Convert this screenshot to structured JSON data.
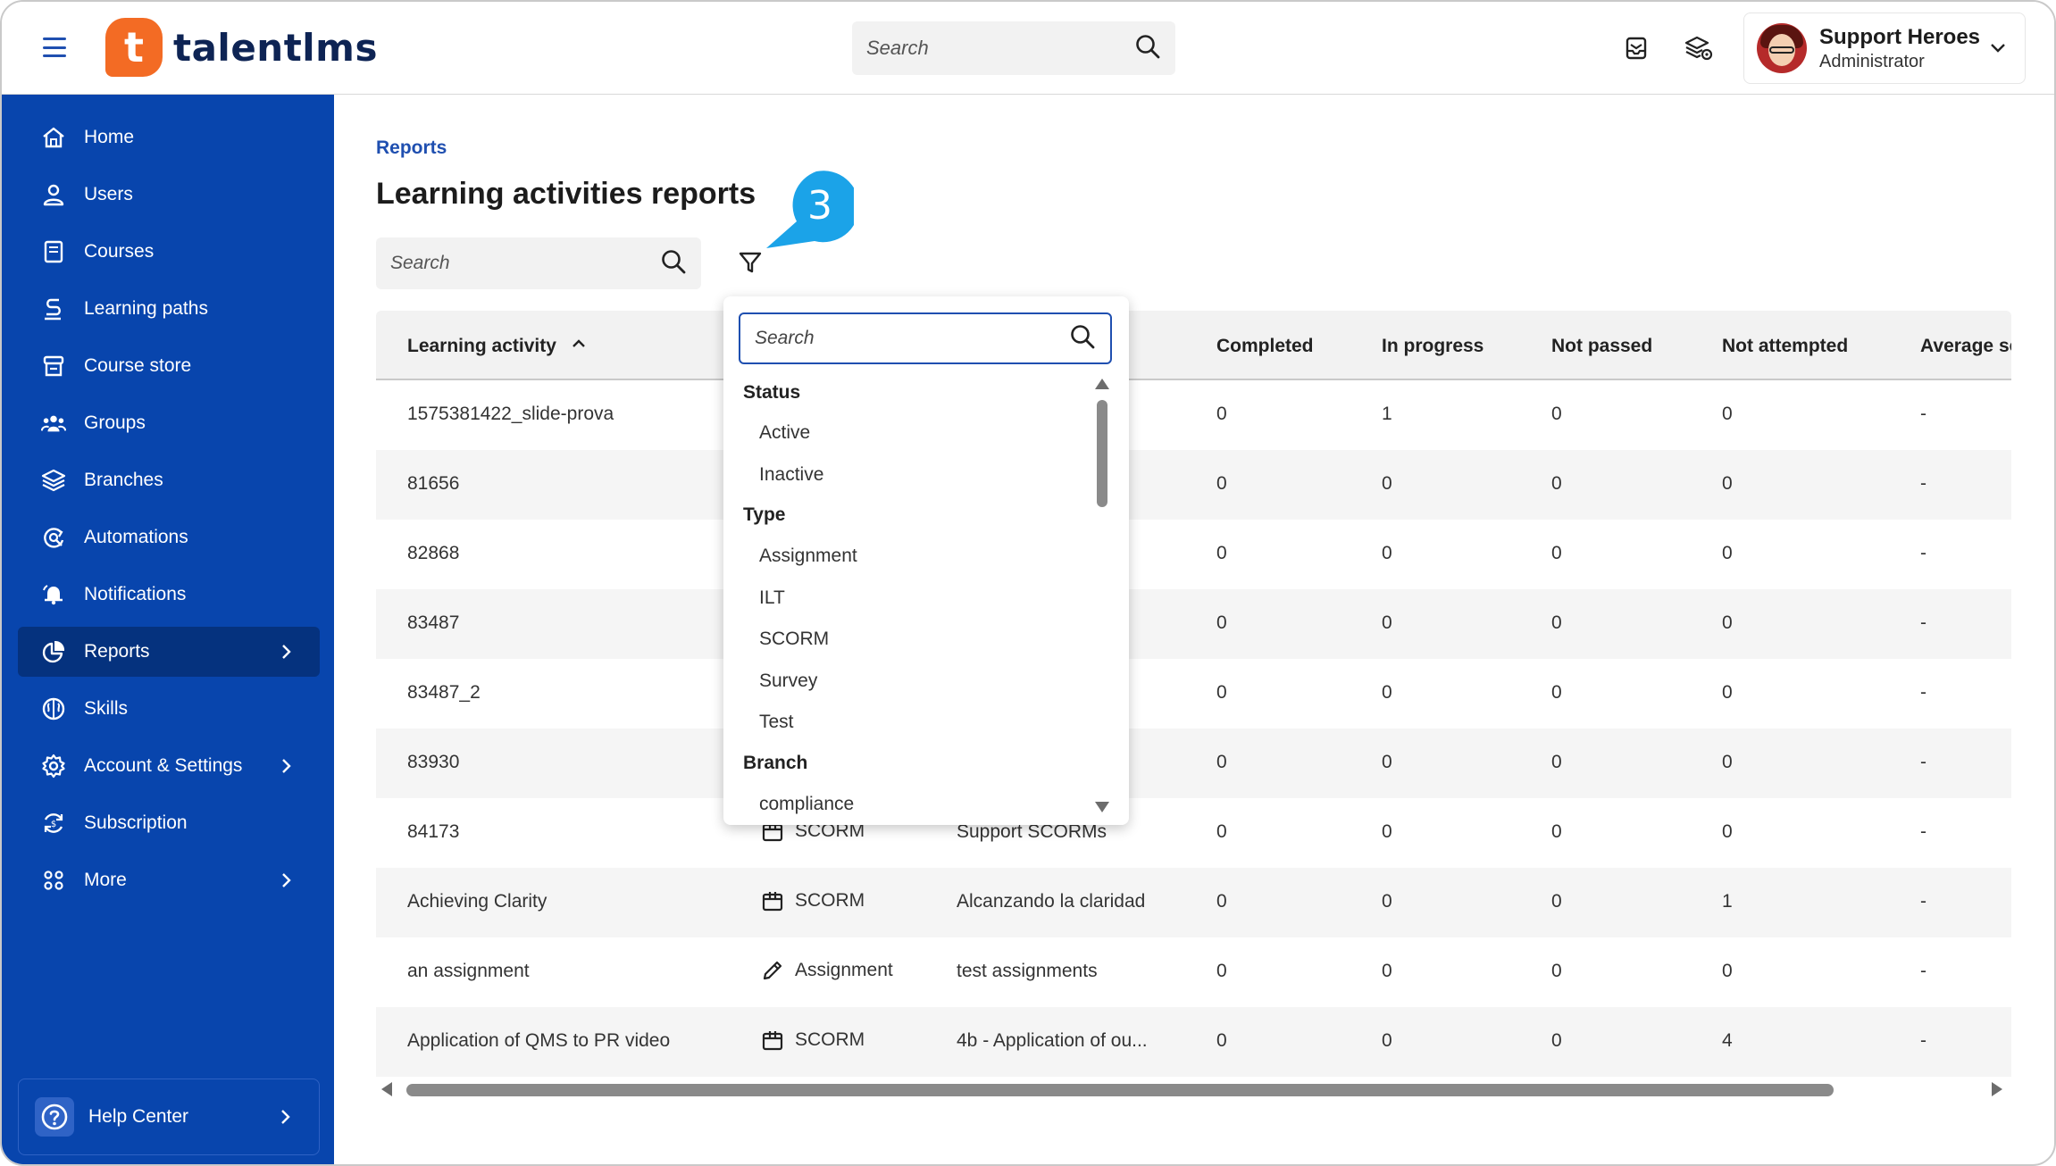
{
  "header": {
    "logo_letter": "t",
    "logo_text": "talentlms",
    "search_placeholder": "Search",
    "user_name": "Support Heroes",
    "user_role": "Administrator"
  },
  "sidebar": {
    "items": [
      {
        "label": "Home",
        "icon": "home-icon"
      },
      {
        "label": "Users",
        "icon": "user-icon"
      },
      {
        "label": "Courses",
        "icon": "book-icon"
      },
      {
        "label": "Learning paths",
        "icon": "path-icon"
      },
      {
        "label": "Course store",
        "icon": "store-icon"
      },
      {
        "label": "Groups",
        "icon": "groups-icon"
      },
      {
        "label": "Branches",
        "icon": "layers-icon"
      },
      {
        "label": "Automations",
        "icon": "automation-icon"
      },
      {
        "label": "Notifications",
        "icon": "bell-icon"
      },
      {
        "label": "Reports",
        "icon": "pie-chart-icon"
      },
      {
        "label": "Skills",
        "icon": "brain-icon"
      },
      {
        "label": "Account & Settings",
        "icon": "gear-icon"
      },
      {
        "label": "Subscription",
        "icon": "refresh-icon"
      },
      {
        "label": "More",
        "icon": "grid-icon"
      }
    ],
    "help_label": "Help Center"
  },
  "main": {
    "breadcrumb": "Reports",
    "title": "Learning activities reports",
    "search_placeholder": "Search",
    "callout_number": "3"
  },
  "table": {
    "headers": [
      "Learning activity",
      "Completed",
      "In progress",
      "Not passed",
      "Not attempted",
      "Average sc"
    ],
    "rows": [
      {
        "activity": "1575381422_slide-prova",
        "type": "",
        "course": "",
        "completed": "0",
        "in_progress": "1",
        "not_passed": "0",
        "not_attempted": "0",
        "average": "-"
      },
      {
        "activity": "81656",
        "type": "",
        "course": "",
        "completed": "0",
        "in_progress": "0",
        "not_passed": "0",
        "not_attempted": "0",
        "average": "-"
      },
      {
        "activity": "82868",
        "type": "",
        "course": "",
        "completed": "0",
        "in_progress": "0",
        "not_passed": "0",
        "not_attempted": "0",
        "average": "-"
      },
      {
        "activity": "83487",
        "type": "",
        "course": "",
        "completed": "0",
        "in_progress": "0",
        "not_passed": "0",
        "not_attempted": "0",
        "average": "-"
      },
      {
        "activity": "83487_2",
        "type": "",
        "course": "",
        "completed": "0",
        "in_progress": "0",
        "not_passed": "0",
        "not_attempted": "0",
        "average": "-"
      },
      {
        "activity": "83930",
        "type": "",
        "course": "",
        "completed": "0",
        "in_progress": "0",
        "not_passed": "0",
        "not_attempted": "0",
        "average": "-"
      },
      {
        "activity": "84173",
        "type": "SCORM",
        "course": "Support SCORMs",
        "completed": "0",
        "in_progress": "0",
        "not_passed": "0",
        "not_attempted": "0",
        "average": "-"
      },
      {
        "activity": "Achieving Clarity",
        "type": "SCORM",
        "course": "Alcanzando la claridad",
        "completed": "0",
        "in_progress": "0",
        "not_passed": "0",
        "not_attempted": "1",
        "average": "-"
      },
      {
        "activity": "an assignment",
        "type": "Assignment",
        "course": "test assignments",
        "completed": "0",
        "in_progress": "0",
        "not_passed": "0",
        "not_attempted": "0",
        "average": "-"
      },
      {
        "activity": "Application of QMS to PR video",
        "type": "SCORM",
        "course": "4b - Application of ou...",
        "completed": "0",
        "in_progress": "0",
        "not_passed": "0",
        "not_attempted": "4",
        "average": "-"
      }
    ]
  },
  "filter_dropdown": {
    "search_placeholder": "Search",
    "groups": [
      {
        "label": "Status",
        "options": [
          "Active",
          "Inactive"
        ]
      },
      {
        "label": "Type",
        "options": [
          "Assignment",
          "ILT",
          "SCORM",
          "Survey",
          "Test"
        ]
      },
      {
        "label": "Branch",
        "options": [
          "compliance"
        ]
      }
    ]
  },
  "colors": {
    "sidebar_bg": "#0845ad",
    "sidebar_active": "#05327e",
    "brand_orange": "#f36b24",
    "link_blue": "#1f4fb0",
    "callout_blue": "#1ba3e8"
  }
}
